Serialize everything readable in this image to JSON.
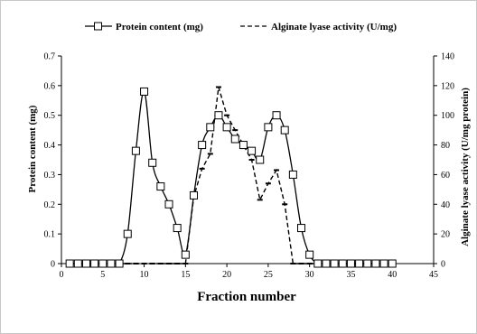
{
  "chart_data": {
    "type": "line",
    "title": "",
    "xlabel": "Fraction number",
    "ylabel": "Protein content (mg)",
    "y2label": "Alginate lyase activity (U/mg protein)",
    "xlim": [
      0,
      45
    ],
    "ylim": [
      0,
      0.7
    ],
    "y2lim": [
      0,
      140
    ],
    "x_ticks": [
      0,
      5,
      10,
      15,
      20,
      25,
      30,
      35,
      40,
      45
    ],
    "y_ticks": [
      "0",
      "0.1",
      "0.2",
      "0.3",
      "0.4",
      "0.5",
      "0.6",
      "0.7"
    ],
    "y2_ticks": [
      "0",
      "20",
      "40",
      "60",
      "80",
      "100",
      "120",
      "140"
    ],
    "legend_position": "top",
    "grid": false,
    "series": [
      {
        "name": "Protein content (mg)",
        "axis": "left",
        "style": "solid",
        "marker": "open-square",
        "color": "#000000",
        "x": [
          1,
          2,
          3,
          4,
          5,
          6,
          7,
          8,
          9,
          10,
          11,
          12,
          13,
          14,
          15,
          16,
          17,
          18,
          19,
          20,
          21,
          22,
          23,
          24,
          25,
          26,
          27,
          28,
          29,
          30,
          31,
          32,
          33,
          34,
          35,
          36,
          37,
          38,
          39,
          40
        ],
        "values": [
          0,
          0,
          0,
          0,
          0,
          0,
          0,
          0.1,
          0.38,
          0.58,
          0.34,
          0.26,
          0.2,
          0.12,
          0.03,
          0.23,
          0.4,
          0.46,
          0.5,
          0.46,
          0.42,
          0.4,
          0.38,
          0.35,
          0.46,
          0.5,
          0.45,
          0.3,
          0.12,
          0.03,
          0,
          0,
          0,
          0,
          0,
          0,
          0,
          0,
          0,
          0
        ]
      },
      {
        "name": "Alginate lyase activity (U/mg)",
        "axis": "right",
        "style": "dashed",
        "marker": "dash",
        "color": "#000000",
        "x": [
          1,
          2,
          3,
          4,
          5,
          6,
          7,
          8,
          9,
          10,
          11,
          12,
          13,
          14,
          15,
          16,
          17,
          18,
          19,
          20,
          21,
          22,
          23,
          24,
          25,
          26,
          27,
          28,
          29,
          30,
          31,
          32,
          33,
          34,
          35,
          36,
          37,
          38,
          39,
          40
        ],
        "values": [
          0,
          0,
          0,
          0,
          0,
          0,
          0,
          0,
          0,
          0,
          0,
          0,
          0,
          0,
          0,
          45,
          64,
          74,
          119,
          100,
          90,
          80,
          70,
          43,
          54,
          63,
          40,
          0,
          0,
          0,
          0,
          0,
          0,
          0,
          0,
          0,
          0,
          0,
          0,
          0
        ]
      }
    ]
  }
}
